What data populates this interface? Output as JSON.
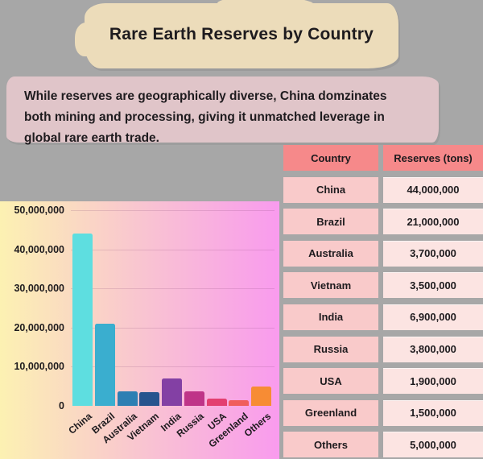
{
  "colors": {
    "background": "#a7a7a7",
    "title_banner": "#ecdcba",
    "subtitle_banner": "#e0c5c9",
    "table_header_bg": "#f6898a",
    "table_country_cell_bg": "#f9caca",
    "table_value_cell_bg": "#fce4e2",
    "text": "#1e1b1e",
    "chart_bg_gradient": [
      "#fcf1b2",
      "#f9c7cf",
      "#f99bee"
    ]
  },
  "header": {
    "title": "Rare Earth Reserves by Country"
  },
  "subtitle": {
    "text": "While reserves are geographically diverse, China domzinates\nboth mining and processing, giving it unmatched leverage in\nglobal rare earth trade."
  },
  "table": {
    "columns": [
      "Country",
      "Reserves (tons)"
    ],
    "rows": [
      {
        "country": "China",
        "reserves": "44,000,000"
      },
      {
        "country": "Brazil",
        "reserves": "21,000,000"
      },
      {
        "country": "Australia",
        "reserves": "3,700,000"
      },
      {
        "country": "Vietnam",
        "reserves": "3,500,000"
      },
      {
        "country": "India",
        "reserves": "6,900,000"
      },
      {
        "country": "Russia",
        "reserves": "3,800,000"
      },
      {
        "country": "USA",
        "reserves": "1,900,000"
      },
      {
        "country": "Greenland",
        "reserves": "1,500,000"
      },
      {
        "country": "Others",
        "reserves": "5,000,000"
      }
    ]
  },
  "chart_data": {
    "type": "bar",
    "categories": [
      "China",
      "Brazil",
      "Australia",
      "Vietnam",
      "India",
      "Russia",
      "USA",
      "Greenland",
      "Others"
    ],
    "values": [
      44000000,
      21000000,
      3700000,
      3500000,
      6900000,
      3800000,
      1900000,
      1500000,
      5000000
    ],
    "bar_colors": [
      "#5edee0",
      "#3aaecf",
      "#2d7fb3",
      "#27548e",
      "#8340a4",
      "#bf3488",
      "#e33f70",
      "#f05e5c",
      "#f78c34"
    ],
    "ylim": [
      0,
      50000000
    ],
    "yticks": [
      0,
      10000000,
      20000000,
      30000000,
      40000000,
      50000000
    ],
    "ytick_labels": [
      "0",
      "10,000,000",
      "20,000,000",
      "30,000,000",
      "40,000,000",
      "50,000,000"
    ],
    "grid": true,
    "legend": false,
    "xlabel": "",
    "ylabel": ""
  }
}
